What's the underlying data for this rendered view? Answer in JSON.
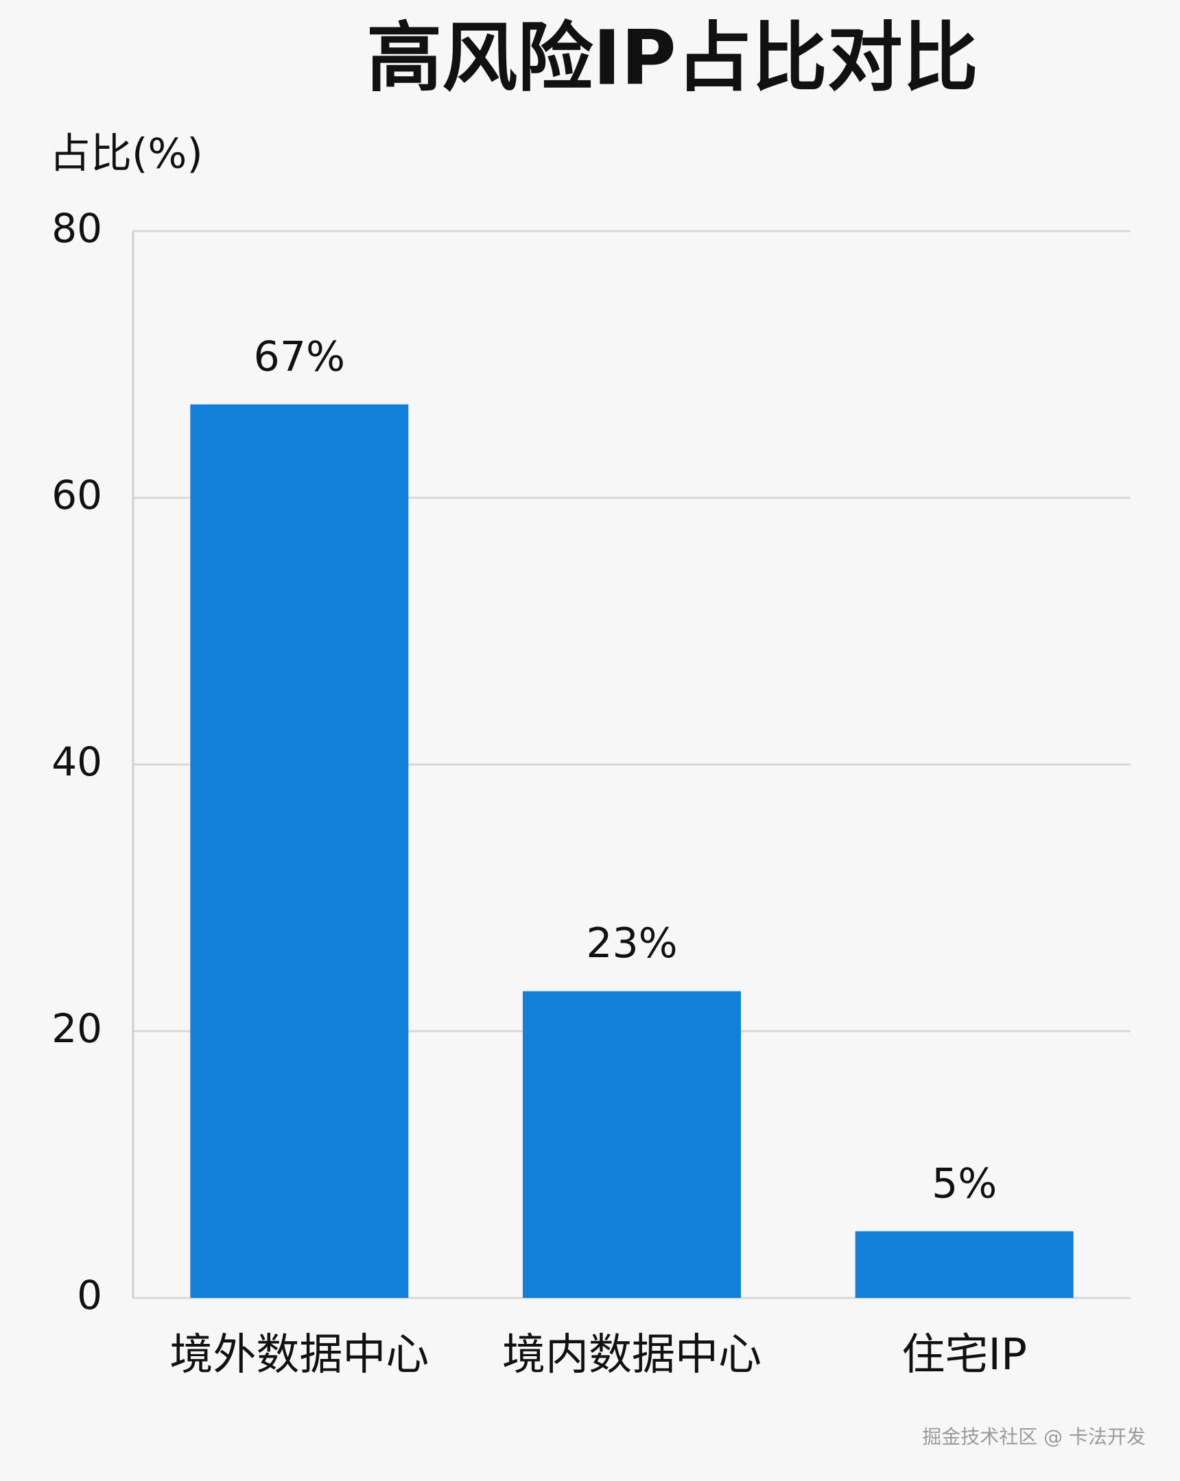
{
  "chart_data": {
    "type": "bar",
    "title": "高风险IP占比对比",
    "y_label": "占比(%)",
    "categories": [
      "境外数据中心",
      "境内数据中心",
      "住宅IP"
    ],
    "values": [
      67,
      23,
      5
    ],
    "value_labels": [
      "67%",
      "23%",
      "5%"
    ],
    "color": "#127fd9",
    "ylim": [
      0,
      80
    ],
    "yticks": [
      0,
      20,
      40,
      60,
      80
    ],
    "grid": true
  },
  "watermark": "掘金技术社区 @ 卡法开发"
}
